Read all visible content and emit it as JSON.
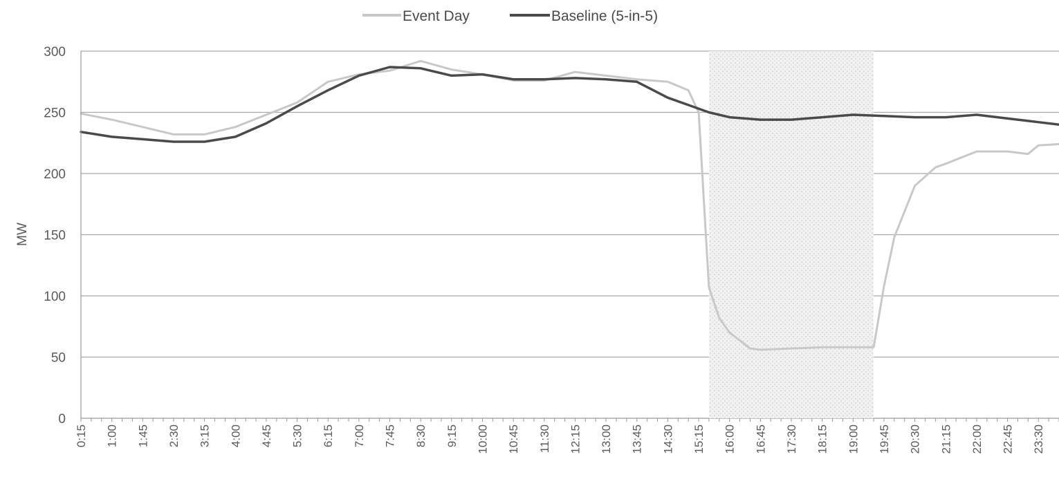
{
  "chart_data": {
    "type": "line",
    "title": "",
    "xlabel": "",
    "ylabel": "MW",
    "ylim": [
      0,
      300
    ],
    "yticks": [
      "0",
      "50",
      "100",
      "150",
      "200",
      "250",
      "300"
    ],
    "grid": true,
    "legend_position": "top-center",
    "x_tick_labels": [
      "0:15",
      "1:00",
      "1:45",
      "2:30",
      "3:15",
      "4:00",
      "4:45",
      "5:30",
      "6:15",
      "7:00",
      "7:45",
      "8:30",
      "9:15",
      "10:00",
      "10:45",
      "11:30",
      "12:15",
      "13:00",
      "13:45",
      "14:30",
      "15:15",
      "16:00",
      "16:45",
      "17:30",
      "18:15",
      "19:00",
      "19:45",
      "20:30",
      "21:15",
      "22:00",
      "22:45",
      "23:30"
    ],
    "x_range_hours": [
      0.25,
      24.0
    ],
    "event_window": {
      "start": "15:30",
      "end": "19:30",
      "start_hours": 15.5,
      "end_hours": 19.5
    },
    "series": [
      {
        "name": "Event Day",
        "color": "#c8c8c8",
        "x": [
          "0:15",
          "1:00",
          "1:45",
          "2:30",
          "3:15",
          "4:00",
          "4:45",
          "5:30",
          "6:15",
          "7:00",
          "7:45",
          "8:30",
          "9:15",
          "10:00",
          "10:45",
          "11:30",
          "12:15",
          "13:00",
          "13:45",
          "14:30",
          "15:00",
          "15:15",
          "15:30",
          "15:45",
          "16:00",
          "16:30",
          "16:45",
          "17:30",
          "18:15",
          "19:00",
          "19:15",
          "19:30",
          "19:45",
          "20:00",
          "20:30",
          "21:00",
          "21:15",
          "22:00",
          "22:45",
          "23:15",
          "23:30",
          "24:00"
        ],
        "values": [
          249,
          244,
          238,
          232,
          232,
          238,
          248,
          258,
          275,
          281,
          284,
          292,
          285,
          281,
          276,
          276,
          283,
          280,
          277,
          275,
          268,
          250,
          107,
          82,
          70,
          57,
          56,
          57,
          58,
          58,
          58,
          58,
          108,
          148,
          190,
          205,
          208,
          218,
          218,
          216,
          223,
          224
        ]
      },
      {
        "name": "Baseline (5-in-5)",
        "color": "#4a4a4a",
        "x": [
          "0:15",
          "1:00",
          "1:45",
          "2:30",
          "3:15",
          "4:00",
          "4:45",
          "5:30",
          "6:15",
          "7:00",
          "7:45",
          "8:30",
          "9:15",
          "10:00",
          "10:45",
          "11:30",
          "12:15",
          "13:00",
          "13:45",
          "14:30",
          "15:00",
          "15:30",
          "16:00",
          "16:45",
          "17:30",
          "18:15",
          "19:00",
          "19:45",
          "20:30",
          "21:15",
          "22:00",
          "22:45",
          "23:15",
          "23:30",
          "24:00"
        ],
        "values": [
          234,
          230,
          228,
          226,
          226,
          230,
          241,
          255,
          268,
          280,
          287,
          286,
          280,
          281,
          277,
          277,
          278,
          277,
          275,
          262,
          256,
          250,
          246,
          244,
          244,
          246,
          248,
          247,
          246,
          246,
          248,
          245,
          243,
          242,
          240
        ]
      }
    ]
  }
}
